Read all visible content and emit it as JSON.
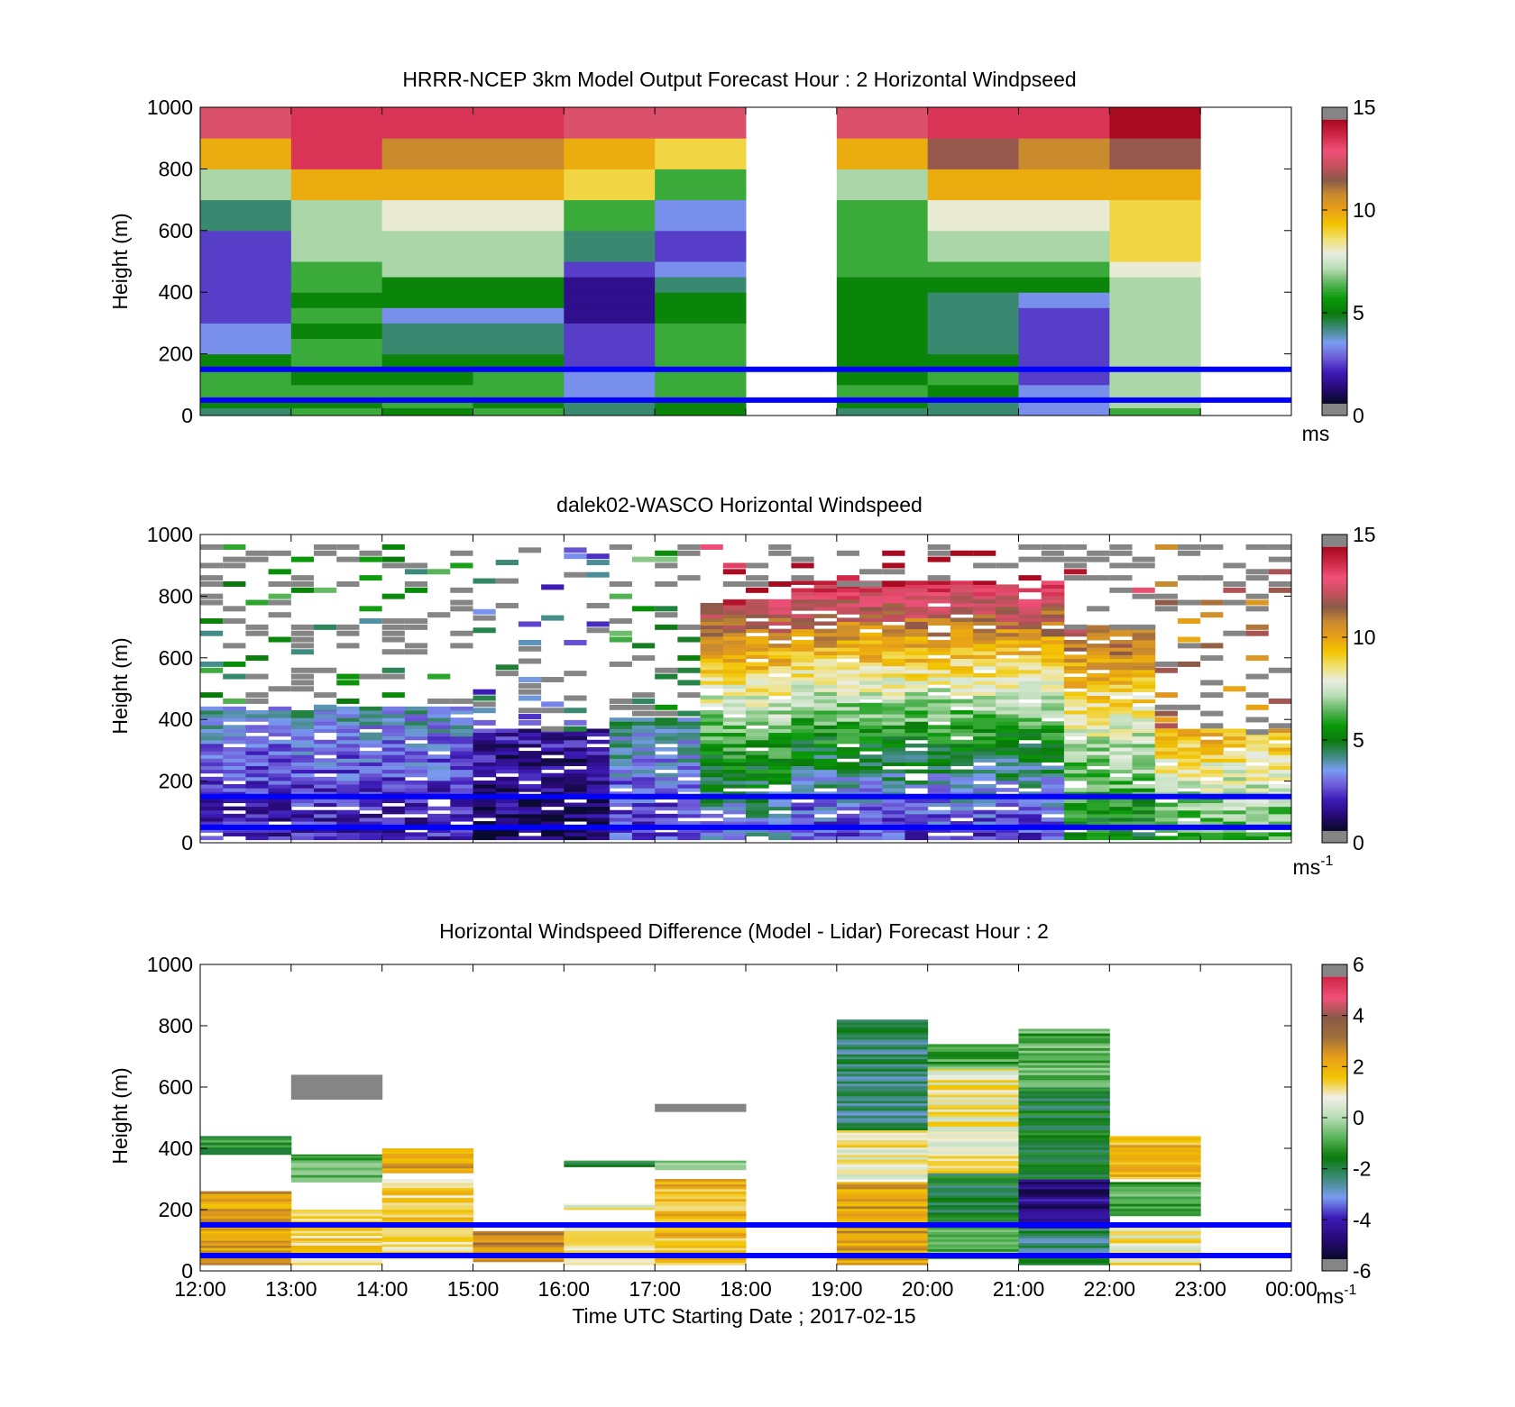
{
  "colors": {
    "speed_map": [
      "#0a0a30",
      "#2a0a7a",
      "#3c1cb8",
      "#6f5cd8",
      "#7a9cf0",
      "#3c8a78",
      "#0a7a0a",
      "#0a9a0a",
      "#5ab45a",
      "#b8dcb4",
      "#e8ede4",
      "#f0e070",
      "#f2c400",
      "#e8a018",
      "#c88a30",
      "#8a5a48",
      "#c85060",
      "#f05078",
      "#d02848",
      "#a80a20"
    ],
    "diff_map": [
      "#0a0a30",
      "#2a0a7a",
      "#3c1cb8",
      "#7a9cf0",
      "#3c8a78",
      "#0a7a0a",
      "#5ab45a",
      "#b8dcb4",
      "#f0f0e8",
      "#f2c400",
      "#e8a018",
      "#a0703a",
      "#8a5a48",
      "#f05078",
      "#d02848"
    ],
    "out_of_range": "#858585",
    "reference_lines": "#0000ff"
  },
  "chart_data": [
    {
      "type": "heatmap",
      "title": "HRRR-NCEP 3km Model Output   Forecast Hour : 2 Horizontal Windpseed",
      "xlabel": "",
      "ylabel": "Height (m)",
      "ylim": [
        0,
        1000
      ],
      "yticks": [
        "0",
        "200",
        "400",
        "600",
        "800",
        "1000"
      ],
      "x_range_hours": [
        12,
        24
      ],
      "colorbar": {
        "min": 0,
        "max": 15,
        "ticks": [
          "0",
          "5",
          "10",
          "15"
        ],
        "label": "ms"
      },
      "reference_lines_m": [
        150,
        50
      ],
      "levels_m": [
        0,
        25,
        50,
        75,
        100,
        150,
        200,
        250,
        300,
        350,
        400,
        450,
        500,
        600,
        700,
        800,
        900,
        1000
      ],
      "columns": [
        {
          "hour": 12,
          "speeds": [
            4,
            5,
            6,
            6,
            6,
            5,
            3,
            3,
            2,
            2,
            2,
            2,
            2,
            4,
            7,
            10,
            13
          ]
        },
        {
          "hour": 13,
          "speeds": [
            6,
            5,
            6,
            6,
            5,
            6,
            6,
            5,
            6,
            5,
            6,
            6,
            7,
            7,
            10,
            14,
            14
          ]
        },
        {
          "hour": 14,
          "speeds": [
            5,
            6,
            6,
            6,
            5,
            5,
            4,
            4,
            3,
            5,
            5,
            7,
            7,
            8,
            10,
            11,
            14
          ]
        },
        {
          "hour": 15,
          "speeds": [
            6,
            5,
            6,
            6,
            6,
            5,
            4,
            4,
            3,
            5,
            5,
            7,
            7,
            8,
            10,
            11,
            14
          ]
        },
        {
          "hour": 16,
          "speeds": [
            4,
            4,
            3,
            3,
            3,
            2,
            2,
            2,
            1,
            1,
            1,
            2,
            4,
            6,
            9,
            10,
            13
          ]
        },
        {
          "hour": 17,
          "speeds": [
            5,
            5,
            6,
            6,
            6,
            6,
            6,
            6,
            5,
            5,
            4,
            3,
            2,
            3,
            6,
            9,
            13
          ]
        },
        {
          "hour": 18,
          "speeds": [
            null,
            null,
            null,
            null,
            null,
            null,
            null,
            null,
            null,
            null,
            null,
            null,
            null,
            null,
            null,
            null,
            null
          ]
        },
        {
          "hour": 19,
          "speeds": [
            4,
            5,
            6,
            6,
            5,
            5,
            5,
            5,
            5,
            5,
            5,
            6,
            6,
            6,
            7,
            10,
            13
          ]
        },
        {
          "hour": 20,
          "speeds": [
            4,
            4,
            5,
            5,
            6,
            5,
            4,
            4,
            4,
            4,
            5,
            6,
            7,
            8,
            10,
            12,
            14
          ]
        },
        {
          "hour": 21,
          "speeds": [
            3,
            3,
            3,
            3,
            2,
            2,
            2,
            2,
            2,
            3,
            5,
            6,
            7,
            8,
            10,
            11,
            14
          ]
        },
        {
          "hour": 22,
          "speeds": [
            6,
            7,
            7,
            7,
            7,
            7,
            7,
            7,
            7,
            7,
            7,
            8,
            9,
            9,
            10,
            12,
            15
          ]
        },
        {
          "hour": 23,
          "speeds": [
            null,
            null,
            null,
            null,
            null,
            null,
            null,
            null,
            null,
            null,
            null,
            null,
            null,
            null,
            null,
            null,
            null
          ]
        }
      ]
    },
    {
      "type": "heatmap",
      "title": "dalek02-WASCO  Horizontal Windspeed",
      "xlabel": "",
      "ylabel": "Height (m)",
      "ylim": [
        0,
        1000
      ],
      "yticks": [
        "0",
        "200",
        "400",
        "600",
        "800",
        "1000"
      ],
      "x_range_hours": [
        12,
        24
      ],
      "colorbar": {
        "min": 0,
        "max": 15,
        "ticks": [
          "0",
          "5",
          "10",
          "15"
        ],
        "label": "ms",
        "label_exponent": "-1"
      },
      "reference_lines_m": [
        150,
        50
      ],
      "segment_hours": [
        12,
        12.5,
        13,
        13.5,
        14,
        14.5,
        15,
        15.5,
        16,
        16.5,
        17,
        17.5,
        18,
        18.5,
        19,
        19.5,
        20,
        20.5,
        21,
        21.5,
        22,
        22.5,
        23,
        23.5
      ],
      "segment_profiles": [
        {
          "from_hour": 12,
          "to_hour": 15,
          "top_m": 440,
          "low_speed": 1.5,
          "high_speed": 3.5
        },
        {
          "from_hour": 15,
          "to_hour": 16.5,
          "top_m": 370,
          "low_speed": 0.5,
          "high_speed": 1.5
        },
        {
          "from_hour": 16.5,
          "to_hour": 17.5,
          "top_m": 400,
          "low_speed": 2,
          "high_speed": 4
        },
        {
          "from_hour": 17.5,
          "to_hour": 18.5,
          "top_m": 780,
          "low_speed": 3,
          "high_speed": 13
        },
        {
          "from_hour": 18.5,
          "to_hour": 21.5,
          "top_m": 840,
          "low_speed": 2,
          "high_speed": 14
        },
        {
          "from_hour": 21.5,
          "to_hour": 22.5,
          "top_m": 700,
          "low_speed": 5,
          "high_speed": 12
        },
        {
          "from_hour": 22.5,
          "to_hour": 24,
          "top_m": 360,
          "low_speed": 6,
          "high_speed": 10
        }
      ]
    },
    {
      "type": "heatmap",
      "title": "Horizontal Windspeed Difference (Model - Lidar) Forecast Hour : 2",
      "xlabel": "Time UTC  Starting Date ; 2017-02-15",
      "ylabel": "Height (m)",
      "ylim": [
        0,
        1000
      ],
      "yticks": [
        "0",
        "200",
        "400",
        "600",
        "800",
        "1000"
      ],
      "xticks": [
        "12:00",
        "13:00",
        "14:00",
        "15:00",
        "16:00",
        "17:00",
        "18:00",
        "19:00",
        "20:00",
        "21:00",
        "22:00",
        "23:00",
        "00:00"
      ],
      "colorbar": {
        "min": -6,
        "max": 6,
        "ticks": [
          "-6",
          "-4",
          "-2",
          "0",
          "2",
          "4",
          "6"
        ],
        "label": "ms",
        "label_exponent": "-1"
      },
      "reference_lines_m": [
        150,
        50
      ],
      "columns": [
        {
          "hour": 12,
          "bands": [
            {
              "from": 20,
              "to": 260,
              "diff": 2.5
            },
            {
              "from": 380,
              "to": 440,
              "diff": -1.5
            }
          ]
        },
        {
          "hour": 13,
          "bands": [
            {
              "from": 20,
              "to": 200,
              "diff": 1.5
            },
            {
              "from": 290,
              "to": 380,
              "diff": -1
            },
            {
              "from": 560,
              "to": 640,
              "diff": 6
            }
          ]
        },
        {
          "hour": 14,
          "bands": [
            {
              "from": 40,
              "to": 300,
              "diff": 1.5
            },
            {
              "from": 320,
              "to": 400,
              "diff": 2.5
            }
          ]
        },
        {
          "hour": 15,
          "bands": [
            {
              "from": 30,
              "to": 130,
              "diff": 3
            }
          ]
        },
        {
          "hour": 16,
          "bands": [
            {
              "from": 20,
              "to": 150,
              "diff": 1
            },
            {
              "from": 200,
              "to": 220,
              "diff": 1
            },
            {
              "from": 340,
              "to": 360,
              "diff": -1.8
            }
          ]
        },
        {
          "hour": 17,
          "bands": [
            {
              "from": 20,
              "to": 300,
              "diff": 2
            },
            {
              "from": 330,
              "to": 360,
              "diff": 0
            },
            {
              "from": 520,
              "to": 545,
              "diff": 6
            }
          ]
        },
        {
          "hour": 19,
          "bands": [
            {
              "from": 20,
              "to": 290,
              "diff": 2.5
            },
            {
              "from": 300,
              "to": 460,
              "diff": 1
            },
            {
              "from": 460,
              "to": 820,
              "diff": -2.5
            }
          ]
        },
        {
          "hour": 20,
          "bands": [
            {
              "from": 40,
              "to": 160,
              "diff": -1
            },
            {
              "from": 160,
              "to": 320,
              "diff": -2
            },
            {
              "from": 320,
              "to": 660,
              "diff": 1
            },
            {
              "from": 660,
              "to": 740,
              "diff": -1
            }
          ]
        },
        {
          "hour": 21,
          "bands": [
            {
              "from": 20,
              "to": 140,
              "diff": -2.5
            },
            {
              "from": 140,
              "to": 300,
              "diff": -5
            },
            {
              "from": 300,
              "to": 600,
              "diff": -2
            },
            {
              "from": 600,
              "to": 790,
              "diff": -1
            }
          ]
        },
        {
          "hour": 22,
          "bands": [
            {
              "from": 20,
              "to": 150,
              "diff": 1
            },
            {
              "from": 180,
              "to": 290,
              "diff": -1
            },
            {
              "from": 300,
              "to": 440,
              "diff": 2
            }
          ]
        }
      ]
    }
  ]
}
